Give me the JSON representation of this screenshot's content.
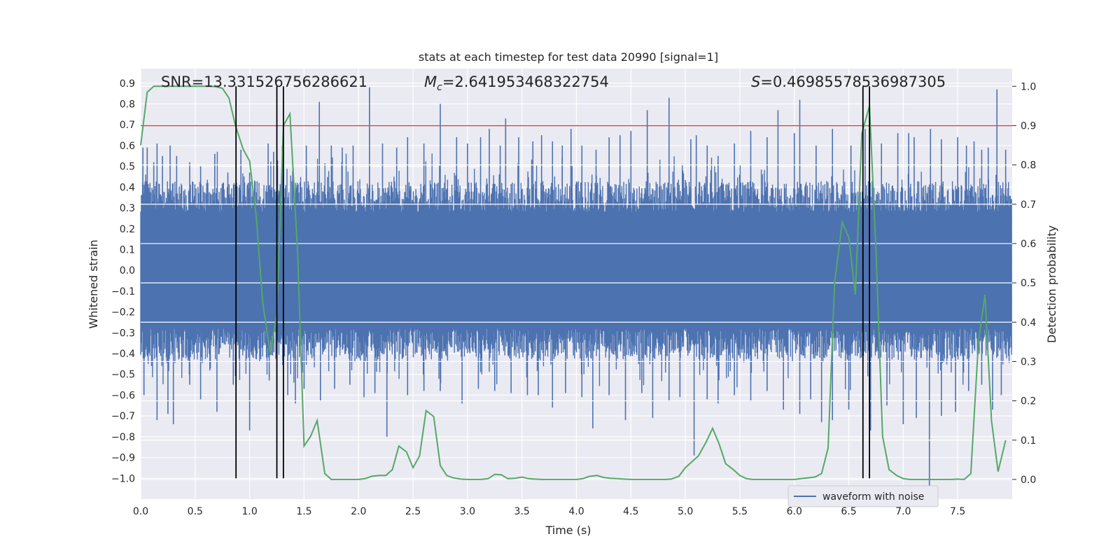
{
  "chart_data": {
    "type": "line",
    "title": "stats at each timestep for test data 20990 [signal=1]",
    "xlabel": "Time (s)",
    "ylabel": "Whitened strain",
    "y2label": "Detection probability",
    "xlim": [
      0.0,
      8.0
    ],
    "ylim": [
      -1.1,
      0.97
    ],
    "y2lim": [
      -0.05,
      1.045
    ],
    "x_ticks": [
      0.0,
      0.5,
      1.0,
      1.5,
      2.0,
      2.5,
      3.0,
      3.5,
      4.0,
      4.5,
      5.0,
      5.5,
      6.0,
      6.5,
      7.0,
      7.5
    ],
    "x_tick_labels": [
      "0.0",
      "0.5",
      "1.0",
      "1.5",
      "2.0",
      "2.5",
      "3.0",
      "3.5",
      "4.0",
      "4.5",
      "5.0",
      "5.5",
      "6.0",
      "6.5",
      "7.0",
      "7.5"
    ],
    "y_ticks": [
      -1.0,
      -0.9,
      -0.8,
      -0.7,
      -0.6,
      -0.5,
      -0.4,
      -0.3,
      -0.2,
      -0.1,
      0.0,
      0.1,
      0.2,
      0.3,
      0.4,
      0.5,
      0.6,
      0.7,
      0.8,
      0.9
    ],
    "y_tick_labels": [
      "−1.0",
      "−0.9",
      "−0.8",
      "−0.7",
      "−0.6",
      "−0.5",
      "−0.4",
      "−0.3",
      "−0.2",
      "−0.1",
      "0.0",
      "0.1",
      "0.2",
      "0.3",
      "0.4",
      "0.5",
      "0.6",
      "0.7",
      "0.8",
      "0.9"
    ],
    "y2_ticks": [
      0.0,
      0.1,
      0.2,
      0.3,
      0.4,
      0.5,
      0.6,
      0.7,
      0.8,
      0.9,
      1.0
    ],
    "y2_tick_labels": [
      "0.0",
      "0.1",
      "0.2",
      "0.3",
      "0.4",
      "0.5",
      "0.6",
      "0.7",
      "0.8",
      "0.9",
      "1.0"
    ],
    "grid": true,
    "legend": {
      "entries": [
        "waveform with noise"
      ],
      "placement": "lower-right"
    },
    "annotations": {
      "snr": "SNR=13.331526756286621",
      "mc_symbol": "M",
      "mc_subscript": "c",
      "mc_value": "=2.641953468322754",
      "s_symbol": "S",
      "s_value": "=0.46985578536987305"
    },
    "threshold": {
      "y2": 0.9,
      "color": "#c44e52"
    },
    "vlines": [
      0.875,
      1.25,
      1.31,
      6.63,
      6.69
    ],
    "series": [
      {
        "kind": "waveform",
        "axis": "left",
        "name": "waveform with noise",
        "color": "#4c72b0",
        "body_amplitude": 0.33,
        "spikes": [
          [
            0.02,
            0.59
          ],
          [
            0.06,
            0.59
          ],
          [
            0.12,
            0.52
          ],
          [
            0.15,
            0.61
          ],
          [
            0.2,
            0.55
          ],
          [
            0.27,
            0.6
          ],
          [
            0.33,
            0.55
          ],
          [
            0.45,
            0.52
          ],
          [
            0.55,
            0.5
          ],
          [
            0.68,
            0.56
          ],
          [
            0.8,
            0.47
          ],
          [
            0.92,
            0.58
          ],
          [
            1.0,
            0.47
          ],
          [
            1.17,
            0.61
          ],
          [
            1.22,
            0.57
          ],
          [
            1.3,
            0.6
          ],
          [
            1.4,
            0.49
          ],
          [
            1.52,
            0.6
          ],
          [
            1.64,
            0.81
          ],
          [
            1.75,
            0.6
          ],
          [
            1.85,
            0.59
          ],
          [
            1.95,
            0.6
          ],
          [
            2.1,
            0.88
          ],
          [
            2.22,
            0.61
          ],
          [
            2.35,
            0.59
          ],
          [
            2.45,
            0.64
          ],
          [
            2.6,
            0.61
          ],
          [
            2.75,
            0.8
          ],
          [
            2.9,
            0.64
          ],
          [
            3.0,
            0.61
          ],
          [
            3.12,
            0.64
          ],
          [
            3.2,
            0.68
          ],
          [
            3.3,
            0.6
          ],
          [
            3.35,
            0.73
          ],
          [
            3.47,
            0.64
          ],
          [
            3.6,
            0.62
          ],
          [
            3.68,
            0.65
          ],
          [
            3.78,
            0.62
          ],
          [
            3.87,
            0.6
          ],
          [
            3.95,
            0.68
          ],
          [
            4.05,
            0.6
          ],
          [
            4.18,
            0.58
          ],
          [
            4.3,
            0.64
          ],
          [
            4.4,
            0.65
          ],
          [
            4.5,
            0.67
          ],
          [
            4.65,
            0.77
          ],
          [
            4.85,
            0.83
          ],
          [
            5.05,
            0.63
          ],
          [
            5.1,
            0.65
          ],
          [
            5.2,
            0.6
          ],
          [
            5.3,
            0.55
          ],
          [
            5.45,
            0.61
          ],
          [
            5.6,
            0.67
          ],
          [
            5.75,
            0.64
          ],
          [
            5.85,
            0.77
          ],
          [
            6.0,
            0.66
          ],
          [
            6.05,
            0.82
          ],
          [
            6.2,
            0.6
          ],
          [
            6.35,
            0.68
          ],
          [
            6.52,
            0.6
          ],
          [
            6.65,
            0.68
          ],
          [
            6.8,
            0.61
          ],
          [
            6.95,
            0.66
          ],
          [
            7.05,
            0.66
          ],
          [
            7.1,
            0.64
          ],
          [
            7.25,
            0.68
          ],
          [
            7.35,
            0.63
          ],
          [
            7.5,
            0.64
          ],
          [
            7.58,
            0.6
          ],
          [
            7.65,
            0.62
          ],
          [
            7.72,
            0.58
          ],
          [
            7.78,
            0.59
          ],
          [
            7.86,
            0.87
          ],
          [
            7.94,
            0.58
          ]
        ],
        "troughs": [
          [
            0.03,
            -0.6
          ],
          [
            0.1,
            -0.46
          ],
          [
            0.15,
            -0.72
          ],
          [
            0.25,
            -0.69
          ],
          [
            0.3,
            -0.74
          ],
          [
            0.45,
            -0.55
          ],
          [
            0.55,
            -0.62
          ],
          [
            0.7,
            -0.68
          ],
          [
            0.85,
            -0.55
          ],
          [
            1.0,
            -0.77
          ],
          [
            1.18,
            -0.53
          ],
          [
            1.25,
            -0.6
          ],
          [
            1.35,
            -0.6
          ],
          [
            1.42,
            -0.64
          ],
          [
            1.5,
            -0.57
          ],
          [
            1.65,
            -0.63
          ],
          [
            1.78,
            -0.57
          ],
          [
            1.92,
            -0.55
          ],
          [
            2.05,
            -0.61
          ],
          [
            2.15,
            -0.59
          ],
          [
            2.26,
            -0.8
          ],
          [
            2.45,
            -0.6
          ],
          [
            2.6,
            -0.58
          ],
          [
            2.75,
            -0.58
          ],
          [
            2.95,
            -0.64
          ],
          [
            3.1,
            -0.57
          ],
          [
            3.25,
            -0.58
          ],
          [
            3.4,
            -0.59
          ],
          [
            3.55,
            -0.6
          ],
          [
            3.65,
            -0.6
          ],
          [
            3.78,
            -0.66
          ],
          [
            3.9,
            -0.59
          ],
          [
            4.05,
            -0.61
          ],
          [
            4.15,
            -0.76
          ],
          [
            4.3,
            -0.6
          ],
          [
            4.45,
            -0.72
          ],
          [
            4.6,
            -0.59
          ],
          [
            4.7,
            -0.71
          ],
          [
            4.85,
            -0.63
          ],
          [
            4.95,
            -0.61
          ],
          [
            5.08,
            -0.89
          ],
          [
            5.2,
            -0.62
          ],
          [
            5.3,
            -0.64
          ],
          [
            5.45,
            -0.6
          ],
          [
            5.6,
            -0.63
          ],
          [
            5.75,
            -0.58
          ],
          [
            5.9,
            -0.67
          ],
          [
            6.05,
            -0.69
          ],
          [
            6.15,
            -0.62
          ],
          [
            6.25,
            -0.73
          ],
          [
            6.35,
            -0.72
          ],
          [
            6.5,
            -0.67
          ],
          [
            6.7,
            -0.77
          ],
          [
            6.85,
            -0.65
          ],
          [
            7.0,
            -0.74
          ],
          [
            7.12,
            -0.71
          ],
          [
            7.24,
            -1.04
          ],
          [
            7.35,
            -0.7
          ],
          [
            7.48,
            -0.68
          ],
          [
            7.6,
            -0.58
          ],
          [
            7.72,
            -0.55
          ],
          [
            7.82,
            -0.67
          ],
          [
            7.9,
            -0.6
          ]
        ]
      },
      {
        "kind": "probability",
        "axis": "right",
        "color": "#55a868",
        "x": [
          0.0,
          0.06,
          0.12,
          0.19,
          0.25,
          0.31,
          0.37,
          0.44,
          0.5,
          0.56,
          0.62,
          0.69,
          0.75,
          0.81,
          0.87,
          0.94,
          1.0,
          1.06,
          1.12,
          1.19,
          1.25,
          1.31,
          1.37,
          1.44,
          1.5,
          1.56,
          1.62,
          1.69,
          1.75,
          1.81,
          1.87,
          1.94,
          2.0,
          2.06,
          2.12,
          2.19,
          2.25,
          2.31,
          2.37,
          2.44,
          2.5,
          2.56,
          2.62,
          2.69,
          2.75,
          2.81,
          2.87,
          2.94,
          3.0,
          3.06,
          3.12,
          3.19,
          3.25,
          3.31,
          3.37,
          3.44,
          3.5,
          3.56,
          3.62,
          3.69,
          3.75,
          3.81,
          3.87,
          3.94,
          4.0,
          4.06,
          4.12,
          4.19,
          4.25,
          4.31,
          4.37,
          4.44,
          4.5,
          4.56,
          4.62,
          4.69,
          4.75,
          4.81,
          4.87,
          4.94,
          5.0,
          5.06,
          5.12,
          5.19,
          5.25,
          5.31,
          5.37,
          5.44,
          5.5,
          5.56,
          5.62,
          5.69,
          5.75,
          5.81,
          5.87,
          5.94,
          6.0,
          6.06,
          6.12,
          6.19,
          6.25,
          6.31,
          6.37,
          6.44,
          6.5,
          6.56,
          6.62,
          6.69,
          6.75,
          6.81,
          6.87,
          6.94,
          7.0,
          7.06,
          7.12,
          7.19,
          7.25,
          7.31,
          7.37,
          7.44,
          7.5,
          7.56,
          7.62,
          7.69,
          7.75,
          7.81,
          7.87,
          7.94
        ],
        "values": [
          0.85,
          0.985,
          1.0,
          1.0,
          1.0,
          1.0,
          1.0,
          1.0,
          1.0,
          1.0,
          1.0,
          0.999,
          0.995,
          0.97,
          0.9,
          0.84,
          0.81,
          0.67,
          0.45,
          0.32,
          0.42,
          0.9,
          0.93,
          0.58,
          0.085,
          0.11,
          0.15,
          0.015,
          0.0,
          0.0,
          0.0,
          0.0,
          0.0,
          0.002,
          0.008,
          0.01,
          0.01,
          0.025,
          0.085,
          0.07,
          0.03,
          0.06,
          0.175,
          0.16,
          0.035,
          0.01,
          0.004,
          0.001,
          0.0,
          0.0,
          0.0,
          0.002,
          0.013,
          0.012,
          0.002,
          0.003,
          0.006,
          0.002,
          0.001,
          0.0,
          0.0,
          0.0,
          0.0,
          0.0,
          0.0,
          0.002,
          0.008,
          0.01,
          0.005,
          0.003,
          0.002,
          0.001,
          0.0,
          0.0,
          0.0,
          0.0,
          0.0,
          0.0,
          0.001,
          0.008,
          0.03,
          0.045,
          0.06,
          0.095,
          0.13,
          0.09,
          0.04,
          0.025,
          0.01,
          0.002,
          0.0,
          0.0,
          0.0,
          0.0,
          0.0,
          0.0,
          0.0,
          0.002,
          0.004,
          0.006,
          0.015,
          0.08,
          0.5,
          0.655,
          0.615,
          0.47,
          0.88,
          0.95,
          0.58,
          0.11,
          0.025,
          0.01,
          0.002,
          0.0,
          0.0,
          0.0,
          0.0,
          0.0,
          0.0,
          0.0,
          0.001,
          0.0,
          0.015,
          0.35,
          0.47,
          0.15,
          0.02,
          0.1
        ]
      }
    ]
  }
}
